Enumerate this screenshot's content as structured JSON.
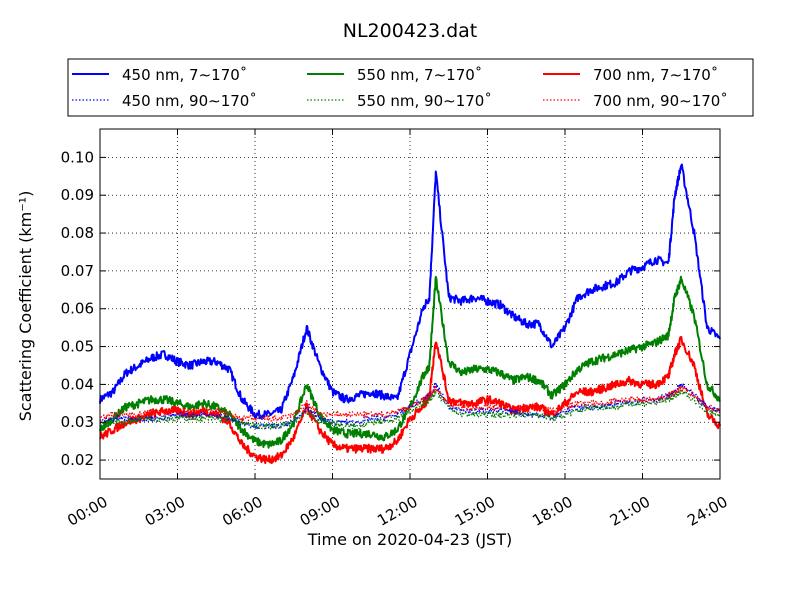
{
  "chart_data": {
    "type": "line",
    "title": "NL200423.dat",
    "xlabel": "Time on 2020-04-23 (JST)",
    "ylabel": "Scattering Coefficient (km⁻¹)",
    "xlim": [
      0,
      24
    ],
    "ylim": [
      0.015,
      0.1075
    ],
    "x_ticks": [
      "00:00",
      "03:00",
      "06:00",
      "09:00",
      "12:00",
      "15:00",
      "18:00",
      "21:00",
      "24:00"
    ],
    "y_ticks": [
      "0.02",
      "0.03",
      "0.04",
      "0.05",
      "0.06",
      "0.07",
      "0.08",
      "0.09",
      "0.10"
    ],
    "grid": true,
    "legend_position": "top, above the plot",
    "x": [
      0,
      0.5,
      1,
      1.5,
      2,
      2.5,
      3,
      3.5,
      4,
      4.5,
      5,
      5.5,
      6,
      6.5,
      7,
      7.5,
      8,
      8.5,
      9,
      9.5,
      10,
      10.5,
      11,
      11.5,
      12,
      12.5,
      12.75,
      13,
      13.5,
      14,
      14.5,
      15,
      15.5,
      16,
      16.5,
      17,
      17.5,
      18,
      18.5,
      19,
      19.5,
      20,
      20.5,
      21,
      21.5,
      22,
      22.25,
      22.5,
      23,
      23.5,
      24
    ],
    "series": [
      {
        "name": "450 nm, 7∼170˚",
        "color": "#0000ff",
        "style": "solid",
        "width": 2,
        "values": [
          0.036,
          0.038,
          0.043,
          0.045,
          0.047,
          0.048,
          0.046,
          0.045,
          0.046,
          0.046,
          0.044,
          0.036,
          0.032,
          0.032,
          0.033,
          0.042,
          0.055,
          0.045,
          0.038,
          0.036,
          0.037,
          0.038,
          0.037,
          0.036,
          0.048,
          0.06,
          0.063,
          0.096,
          0.063,
          0.062,
          0.063,
          0.062,
          0.061,
          0.058,
          0.056,
          0.056,
          0.05,
          0.055,
          0.063,
          0.065,
          0.066,
          0.067,
          0.07,
          0.071,
          0.073,
          0.072,
          0.09,
          0.098,
          0.08,
          0.055,
          0.052
        ]
      },
      {
        "name": "550 nm, 7∼170˚",
        "color": "#008000",
        "style": "solid",
        "width": 2,
        "values": [
          0.028,
          0.031,
          0.034,
          0.035,
          0.036,
          0.036,
          0.035,
          0.034,
          0.035,
          0.034,
          0.032,
          0.028,
          0.025,
          0.024,
          0.025,
          0.03,
          0.04,
          0.032,
          0.028,
          0.027,
          0.027,
          0.027,
          0.026,
          0.028,
          0.034,
          0.042,
          0.045,
          0.068,
          0.046,
          0.043,
          0.044,
          0.044,
          0.043,
          0.041,
          0.042,
          0.041,
          0.037,
          0.04,
          0.044,
          0.046,
          0.047,
          0.048,
          0.049,
          0.05,
          0.051,
          0.053,
          0.063,
          0.068,
          0.058,
          0.04,
          0.036
        ]
      },
      {
        "name": "700 nm, 7∼170˚",
        "color": "#ff0000",
        "style": "solid",
        "width": 2,
        "values": [
          0.026,
          0.028,
          0.03,
          0.031,
          0.032,
          0.033,
          0.033,
          0.032,
          0.033,
          0.032,
          0.03,
          0.024,
          0.021,
          0.02,
          0.021,
          0.026,
          0.034,
          0.028,
          0.024,
          0.023,
          0.023,
          0.023,
          0.023,
          0.025,
          0.031,
          0.034,
          0.037,
          0.052,
          0.036,
          0.035,
          0.035,
          0.036,
          0.035,
          0.033,
          0.034,
          0.034,
          0.032,
          0.035,
          0.038,
          0.038,
          0.039,
          0.04,
          0.041,
          0.04,
          0.04,
          0.042,
          0.048,
          0.052,
          0.045,
          0.032,
          0.029
        ]
      },
      {
        "name": "450 nm, 90∼170˚",
        "color": "#0000ff",
        "style": "dotted",
        "width": 1.3,
        "values": [
          0.03,
          0.031,
          0.031,
          0.031,
          0.031,
          0.031,
          0.032,
          0.032,
          0.032,
          0.032,
          0.031,
          0.03,
          0.029,
          0.029,
          0.029,
          0.03,
          0.034,
          0.031,
          0.03,
          0.03,
          0.03,
          0.031,
          0.031,
          0.032,
          0.034,
          0.036,
          0.037,
          0.04,
          0.034,
          0.033,
          0.033,
          0.033,
          0.033,
          0.033,
          0.032,
          0.032,
          0.031,
          0.033,
          0.034,
          0.034,
          0.034,
          0.035,
          0.035,
          0.036,
          0.036,
          0.037,
          0.038,
          0.04,
          0.037,
          0.034,
          0.033
        ]
      },
      {
        "name": "550 nm, 90∼170˚",
        "color": "#008000",
        "style": "dotted",
        "width": 1.3,
        "values": [
          0.029,
          0.03,
          0.03,
          0.031,
          0.031,
          0.031,
          0.031,
          0.031,
          0.031,
          0.031,
          0.031,
          0.03,
          0.029,
          0.029,
          0.029,
          0.03,
          0.033,
          0.03,
          0.03,
          0.029,
          0.029,
          0.03,
          0.03,
          0.031,
          0.033,
          0.035,
          0.036,
          0.038,
          0.034,
          0.032,
          0.032,
          0.032,
          0.032,
          0.032,
          0.032,
          0.032,
          0.031,
          0.032,
          0.033,
          0.034,
          0.034,
          0.034,
          0.035,
          0.035,
          0.035,
          0.036,
          0.037,
          0.038,
          0.036,
          0.033,
          0.032
        ]
      },
      {
        "name": "700 nm, 90∼170˚",
        "color": "#ff0000",
        "style": "dotted",
        "width": 1.3,
        "values": [
          0.031,
          0.032,
          0.032,
          0.032,
          0.033,
          0.033,
          0.033,
          0.033,
          0.033,
          0.033,
          0.032,
          0.031,
          0.031,
          0.031,
          0.031,
          0.032,
          0.035,
          0.032,
          0.032,
          0.032,
          0.032,
          0.032,
          0.032,
          0.033,
          0.034,
          0.036,
          0.037,
          0.039,
          0.035,
          0.034,
          0.034,
          0.034,
          0.034,
          0.034,
          0.034,
          0.034,
          0.033,
          0.034,
          0.035,
          0.035,
          0.035,
          0.036,
          0.036,
          0.036,
          0.036,
          0.037,
          0.038,
          0.039,
          0.037,
          0.034,
          0.033
        ]
      }
    ]
  }
}
